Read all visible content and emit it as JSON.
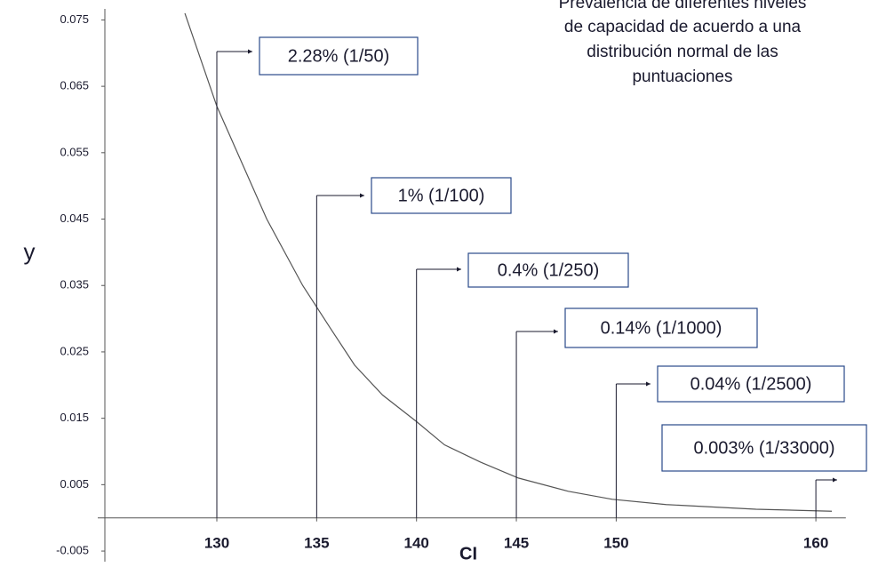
{
  "chart_data": {
    "type": "line",
    "title": [
      "Prevalencia de diferentes niveles",
      "de capacidad de acuerdo a una",
      "distribución normal de las",
      "puntuaciones"
    ],
    "x_label": "CI",
    "y_label": "y",
    "x": [
      128.4,
      130,
      132.5,
      134.3,
      135.7,
      136.9,
      138.3,
      140,
      141.4,
      143.2,
      145.1,
      147.6,
      149.8,
      152.5,
      157,
      160.8
    ],
    "series": [
      {
        "name": "y",
        "color": "#555555",
        "values": [
          0.076,
          0.062,
          0.045,
          0.035,
          0.0285,
          0.023,
          0.0185,
          0.0145,
          0.011,
          0.0084,
          0.006,
          0.004,
          0.0028,
          0.002,
          0.0013,
          0.001
        ]
      }
    ],
    "xlim": [
      124,
      161.5
    ],
    "xticks": [
      130,
      135,
      140,
      145,
      150,
      160
    ],
    "ylim": [
      -0.007,
      0.078
    ],
    "yticks": [
      -0.005,
      0.005,
      0.015,
      0.025,
      0.035,
      0.045,
      0.055,
      0.065,
      0.075
    ],
    "annotations": [
      {
        "x": 130,
        "text": "2.28% (1/50)"
      },
      {
        "x": 135,
        "text": "1% (1/100)"
      },
      {
        "x": 140,
        "text": "0.4% (1/250)"
      },
      {
        "x": 145,
        "text": "0.14% (1/1000)"
      },
      {
        "x": 150,
        "text": "0.04% (1/2500)"
      },
      {
        "x": 160,
        "text": "0.003% (1/33000)"
      }
    ]
  }
}
